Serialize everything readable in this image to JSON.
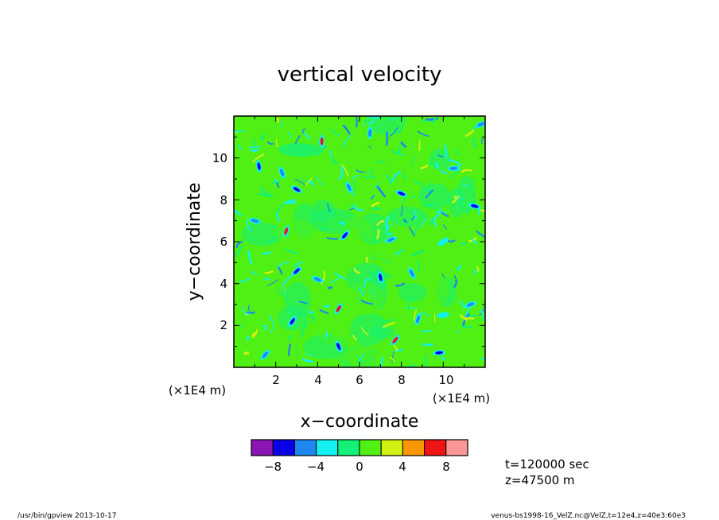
{
  "chart_data": {
    "type": "heatmap",
    "title": "vertical velocity",
    "xlabel": "x−coordinate",
    "ylabel": "y−coordinate",
    "x_unit": "(×1E4 m)",
    "y_unit": "(×1E4 m)",
    "xlim": [
      0,
      12
    ],
    "ylim": [
      0,
      12
    ],
    "x_ticks": [
      "2",
      "4",
      "6",
      "8",
      "10"
    ],
    "y_ticks": [
      "2",
      "4",
      "6",
      "8",
      "10"
    ],
    "x_tick_values": [
      2,
      4,
      6,
      8,
      10
    ],
    "y_tick_values": [
      2,
      4,
      6,
      8,
      10
    ],
    "field_description_values": {
      "background_value": 0,
      "dominant_range": [
        -2,
        2
      ]
    },
    "colorbar": {
      "levels": [
        -10,
        -8,
        -6,
        -4,
        -2,
        0,
        2,
        4,
        6,
        8,
        10
      ],
      "colors": [
        "#8a14b4",
        "#0a00e6",
        "#1e88f0",
        "#14f0f0",
        "#14f078",
        "#50f014",
        "#d2f014",
        "#fa9600",
        "#f01414",
        "#fa9696"
      ],
      "tick_labels": [
        "−8",
        "−4",
        "0",
        "4",
        "8"
      ],
      "tick_values": [
        -8,
        -4,
        0,
        4,
        8
      ]
    },
    "features": [
      {
        "x": 1.2,
        "y": 9.6,
        "value": -8
      },
      {
        "x": 2.3,
        "y": 9.3,
        "value": -6
      },
      {
        "x": 3.0,
        "y": 8.5,
        "value": -8
      },
      {
        "x": 5.5,
        "y": 8.6,
        "value": -6
      },
      {
        "x": 8.0,
        "y": 8.3,
        "value": -8
      },
      {
        "x": 10.5,
        "y": 9.5,
        "value": -6
      },
      {
        "x": 11.5,
        "y": 7.7,
        "value": -8
      },
      {
        "x": 1.0,
        "y": 7.0,
        "value": -6
      },
      {
        "x": 2.5,
        "y": 6.5,
        "value": 6
      },
      {
        "x": 5.3,
        "y": 6.3,
        "value": -8
      },
      {
        "x": 7.5,
        "y": 6.1,
        "value": -6
      },
      {
        "x": 10.0,
        "y": 6.0,
        "value": -4
      },
      {
        "x": 3.0,
        "y": 4.6,
        "value": -8
      },
      {
        "x": 4.0,
        "y": 4.2,
        "value": -6
      },
      {
        "x": 7.0,
        "y": 4.3,
        "value": -8
      },
      {
        "x": 8.5,
        "y": 4.5,
        "value": -6
      },
      {
        "x": 11.3,
        "y": 3.0,
        "value": -6
      },
      {
        "x": 2.8,
        "y": 2.2,
        "value": -8
      },
      {
        "x": 5.0,
        "y": 2.8,
        "value": 6
      },
      {
        "x": 8.8,
        "y": 2.3,
        "value": -6
      },
      {
        "x": 10.0,
        "y": 2.5,
        "value": -4
      },
      {
        "x": 1.5,
        "y": 0.6,
        "value": -6
      },
      {
        "x": 5.0,
        "y": 1.0,
        "value": -8
      },
      {
        "x": 9.8,
        "y": 0.7,
        "value": -8
      },
      {
        "x": 7.7,
        "y": 1.3,
        "value": 6
      },
      {
        "x": 11.8,
        "y": 11.6,
        "value": -6
      },
      {
        "x": 6.5,
        "y": 11.2,
        "value": -6
      },
      {
        "x": 4.2,
        "y": 10.8,
        "value": 6
      }
    ]
  },
  "info": {
    "time": "t=120000 sec",
    "height": "z=47500 m"
  },
  "footer": {
    "left": "/usr/bin/gpview   2013-10-17",
    "right": "venus-bs1998-16_VelZ.nc@VelZ,t=12e4,z=40e3:60e3"
  }
}
